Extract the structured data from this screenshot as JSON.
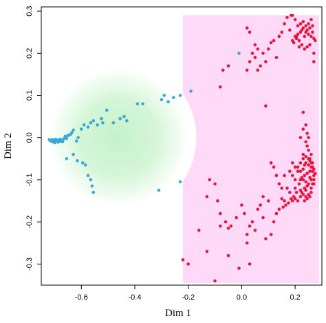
{
  "chart_data": {
    "type": "scatter",
    "title": "",
    "xlabel": "Dim 1",
    "ylabel": "Dim 2",
    "xlim": [
      -0.75,
      0.3
    ],
    "ylim": [
      -0.35,
      0.31
    ],
    "xticks": [
      -0.6,
      -0.4,
      -0.2,
      0.0,
      0.2
    ],
    "xtick_labels": [
      "-0.6",
      "-0.4",
      "-0.2",
      "0.0",
      "0.2"
    ],
    "yticks": [
      -0.3,
      -0.2,
      -0.1,
      0.0,
      0.1,
      0.2,
      0.3
    ],
    "ytick_labels": [
      "-0.3",
      "-0.2",
      "-0.1",
      "0.0",
      "0.1",
      "0.2",
      "0.3"
    ],
    "grid": false,
    "colors": {
      "series_a": "#38a9d6",
      "series_b": "#e8143c",
      "region_a_fill": "#c4f2c8",
      "region_b_fill": "#ffd9f7"
    },
    "regions": [
      {
        "shape": "radial-gradient",
        "center": [
          -0.46,
          0.0
        ],
        "radius": 0.27,
        "color": "#c4f2c8"
      },
      {
        "shape": "rectangle-with-circular-cutout",
        "x0": -0.22,
        "x1": 0.29,
        "y0": -0.345,
        "y1": 0.29,
        "cutout_center": [
          -0.46,
          0.0
        ],
        "cutout_radius": 0.29,
        "color": "#ffd9f7"
      }
    ],
    "series": [
      {
        "color": "#38a9d6",
        "points": [
          [
            -0.72,
            -0.005
          ],
          [
            -0.715,
            -0.008
          ],
          [
            -0.71,
            -0.005
          ],
          [
            -0.707,
            -0.01
          ],
          [
            -0.703,
            -0.006
          ],
          [
            -0.7,
            -0.012
          ],
          [
            -0.697,
            -0.004
          ],
          [
            -0.694,
            -0.009
          ],
          [
            -0.69,
            -0.006
          ],
          [
            -0.687,
            -0.011
          ],
          [
            -0.684,
            -0.007
          ],
          [
            -0.68,
            -0.004
          ],
          [
            -0.677,
            -0.009
          ],
          [
            -0.673,
            -0.006
          ],
          [
            -0.67,
            -0.01
          ],
          [
            -0.667,
            -0.004
          ],
          [
            -0.663,
            -0.001
          ],
          [
            -0.66,
            0.003
          ],
          [
            -0.655,
            -0.002
          ],
          [
            -0.65,
            0.005
          ],
          [
            -0.645,
            0.006
          ],
          [
            -0.64,
            0.008
          ],
          [
            -0.635,
            0.012
          ],
          [
            -0.63,
            0.018
          ],
          [
            -0.618,
            -0.008
          ],
          [
            -0.612,
            0.0
          ],
          [
            -0.6,
            0.02
          ],
          [
            -0.59,
            0.03
          ],
          [
            -0.575,
            0.025
          ],
          [
            -0.565,
            0.035
          ],
          [
            -0.555,
            0.04
          ],
          [
            -0.54,
            0.03
          ],
          [
            -0.525,
            0.045
          ],
          [
            -0.505,
            0.065
          ],
          [
            -0.52,
            0.035
          ],
          [
            -0.48,
            0.035
          ],
          [
            -0.455,
            0.045
          ],
          [
            -0.44,
            0.05
          ],
          [
            -0.43,
            0.04
          ],
          [
            -0.39,
            0.08
          ],
          [
            -0.37,
            0.08
          ],
          [
            -0.3,
            0.09
          ],
          [
            -0.29,
            0.1
          ],
          [
            -0.275,
            0.085
          ],
          [
            -0.255,
            0.095
          ],
          [
            -0.23,
            0.1
          ],
          [
            -0.19,
            0.11
          ],
          [
            -0.655,
            -0.05
          ],
          [
            -0.63,
            -0.04
          ],
          [
            -0.615,
            -0.055
          ],
          [
            -0.595,
            -0.06
          ],
          [
            -0.585,
            -0.065
          ],
          [
            -0.575,
            -0.09
          ],
          [
            -0.565,
            -0.1
          ],
          [
            -0.56,
            -0.115
          ],
          [
            -0.555,
            -0.13
          ],
          [
            -0.31,
            -0.125
          ],
          [
            -0.23,
            -0.105
          ],
          [
            -0.01,
            0.2
          ]
        ]
      },
      {
        "color": "#e8143c",
        "points": [
          [
            0.19,
            0.23
          ],
          [
            0.2,
            0.24
          ],
          [
            0.205,
            0.235
          ],
          [
            0.21,
            0.245
          ],
          [
            0.215,
            0.23
          ],
          [
            0.22,
            0.25
          ],
          [
            0.225,
            0.255
          ],
          [
            0.23,
            0.26
          ],
          [
            0.235,
            0.24
          ],
          [
            0.24,
            0.25
          ],
          [
            0.245,
            0.255
          ],
          [
            0.25,
            0.245
          ],
          [
            0.255,
            0.26
          ],
          [
            0.26,
            0.24
          ],
          [
            0.265,
            0.25
          ],
          [
            0.27,
            0.235
          ],
          [
            0.275,
            0.23
          ],
          [
            0.255,
            0.22
          ],
          [
            0.245,
            0.215
          ],
          [
            0.235,
            0.21
          ],
          [
            0.225,
            0.22
          ],
          [
            0.215,
            0.215
          ],
          [
            0.205,
            0.24
          ],
          [
            0.195,
            0.225
          ],
          [
            0.21,
            0.265
          ],
          [
            0.22,
            0.27
          ],
          [
            0.23,
            0.275
          ],
          [
            0.24,
            0.265
          ],
          [
            0.25,
            0.27
          ],
          [
            0.26,
            0.28
          ],
          [
            0.265,
            0.265
          ],
          [
            0.2,
            0.28
          ],
          [
            0.17,
            0.285
          ],
          [
            0.16,
            0.27
          ],
          [
            0.15,
            0.25
          ],
          [
            0.14,
            0.24
          ],
          [
            0.12,
            0.23
          ],
          [
            0.11,
            0.225
          ],
          [
            0.08,
            0.2
          ],
          [
            0.07,
            0.17
          ],
          [
            0.06,
            0.21
          ],
          [
            0.05,
            0.22
          ],
          [
            0.03,
            0.25
          ],
          [
            0.02,
            0.26
          ],
          [
            0.04,
            0.2
          ],
          [
            0.03,
            0.18
          ],
          [
            0.05,
            0.19
          ],
          [
            0.06,
            0.16
          ],
          [
            0.09,
            0.18
          ],
          [
            0.1,
            0.21
          ],
          [
            0.13,
            0.19
          ],
          [
            0.185,
            0.29
          ],
          [
            0.19,
            0.29
          ],
          [
            0.18,
            0.255
          ],
          [
            -0.05,
            0.17
          ],
          [
            -0.07,
            0.16
          ],
          [
            -0.08,
            0.12
          ],
          [
            0.02,
            0.16
          ],
          [
            0.09,
            0.075
          ],
          [
            0.27,
            0.2
          ],
          [
            0.27,
            0.18
          ],
          [
            0.23,
            -0.05
          ],
          [
            0.24,
            -0.06
          ],
          [
            0.25,
            -0.065
          ],
          [
            0.26,
            -0.07
          ],
          [
            0.255,
            -0.08
          ],
          [
            0.245,
            -0.085
          ],
          [
            0.235,
            -0.09
          ],
          [
            0.225,
            -0.095
          ],
          [
            0.22,
            -0.1
          ],
          [
            0.215,
            -0.11
          ],
          [
            0.23,
            -0.1
          ],
          [
            0.24,
            -0.105
          ],
          [
            0.25,
            -0.11
          ],
          [
            0.26,
            -0.1
          ],
          [
            0.27,
            -0.09
          ],
          [
            0.265,
            -0.08
          ],
          [
            0.255,
            -0.095
          ],
          [
            0.245,
            -0.115
          ],
          [
            0.235,
            -0.12
          ],
          [
            0.225,
            -0.13
          ],
          [
            0.24,
            -0.125
          ],
          [
            0.25,
            -0.135
          ],
          [
            0.26,
            -0.12
          ],
          [
            0.27,
            -0.11
          ],
          [
            0.265,
            -0.06
          ],
          [
            0.255,
            -0.05
          ],
          [
            0.26,
            -0.04
          ],
          [
            0.25,
            -0.03
          ],
          [
            0.245,
            -0.02
          ],
          [
            0.24,
            -0.01
          ],
          [
            0.25,
            0.0
          ],
          [
            0.245,
            0.01
          ],
          [
            0.24,
            0.03
          ],
          [
            0.23,
            0.06
          ],
          [
            0.22,
            -0.14
          ],
          [
            0.21,
            -0.15
          ],
          [
            0.2,
            -0.145
          ],
          [
            0.19,
            -0.15
          ],
          [
            0.18,
            -0.13
          ],
          [
            0.17,
            -0.12
          ],
          [
            0.16,
            -0.15
          ],
          [
            0.15,
            -0.145
          ],
          [
            0.14,
            -0.11
          ],
          [
            0.13,
            -0.09
          ],
          [
            0.12,
            -0.07
          ],
          [
            0.11,
            -0.06
          ],
          [
            0.2,
            -0.12
          ],
          [
            0.21,
            -0.07
          ],
          [
            0.22,
            -0.06
          ],
          [
            0.2,
            -0.07
          ],
          [
            0.19,
            -0.06
          ],
          [
            0.21,
            -0.08
          ],
          [
            0.22,
            -0.08
          ],
          [
            0.23,
            -0.075
          ],
          [
            0.235,
            -0.065
          ],
          [
            0.23,
            -0.04
          ],
          [
            0.24,
            -0.045
          ],
          [
            0.25,
            -0.05
          ],
          [
            0.255,
            -0.055
          ],
          [
            0.26,
            -0.06
          ],
          [
            0.265,
            -0.07
          ],
          [
            0.27,
            -0.075
          ],
          [
            0.275,
            -0.085
          ],
          [
            0.27,
            -0.1
          ],
          [
            0.265,
            -0.11
          ],
          [
            0.26,
            -0.13
          ],
          [
            0.255,
            -0.14
          ],
          [
            0.245,
            -0.145
          ],
          [
            0.235,
            -0.15
          ],
          [
            0.24,
            -0.14
          ],
          [
            0.23,
            -0.135
          ],
          [
            0.22,
            -0.125
          ],
          [
            0.205,
            -0.13
          ],
          [
            0.195,
            -0.14
          ],
          [
            0.185,
            -0.145
          ],
          [
            0.175,
            -0.155
          ],
          [
            0.165,
            -0.16
          ],
          [
            0.155,
            -0.165
          ],
          [
            0.1,
            -0.15
          ],
          [
            0.08,
            -0.14
          ],
          [
            0.07,
            -0.16
          ],
          [
            0.06,
            -0.17
          ],
          [
            0.04,
            -0.2
          ],
          [
            0.03,
            -0.21
          ],
          [
            0.02,
            -0.23
          ],
          [
            0.01,
            -0.18
          ],
          [
            -0.0,
            -0.16
          ],
          [
            -0.02,
            -0.19
          ],
          [
            -0.04,
            -0.21
          ],
          [
            -0.05,
            -0.215
          ],
          [
            -0.08,
            -0.18
          ],
          [
            -0.09,
            -0.15
          ],
          [
            -0.1,
            -0.11
          ],
          [
            -0.12,
            -0.1
          ],
          [
            -0.13,
            -0.14
          ],
          [
            -0.16,
            -0.22
          ],
          [
            -0.2,
            -0.3
          ],
          [
            -0.22,
            -0.29
          ],
          [
            -0.1,
            -0.34
          ],
          [
            -0.05,
            -0.28
          ],
          [
            -0.08,
            -0.21
          ],
          [
            -0.06,
            -0.2
          ],
          [
            0.02,
            -0.25
          ],
          [
            0.05,
            -0.22
          ],
          [
            0.08,
            -0.19
          ],
          [
            0.09,
            -0.24
          ],
          [
            0.11,
            -0.23
          ],
          [
            0.12,
            -0.2
          ],
          [
            0.13,
            -0.18
          ],
          [
            0.14,
            -0.17
          ],
          [
            0.15,
            -0.12
          ],
          [
            0.16,
            -0.09
          ],
          [
            0.18,
            -0.08
          ],
          [
            0.19,
            -0.09
          ],
          [
            0.2,
            -0.1
          ],
          [
            0.23,
            0.02
          ],
          [
            0.22,
            0.0
          ],
          [
            -0.01,
            -0.31
          ],
          [
            0.03,
            -0.3
          ],
          [
            -0.13,
            -0.27
          ]
        ]
      }
    ]
  }
}
